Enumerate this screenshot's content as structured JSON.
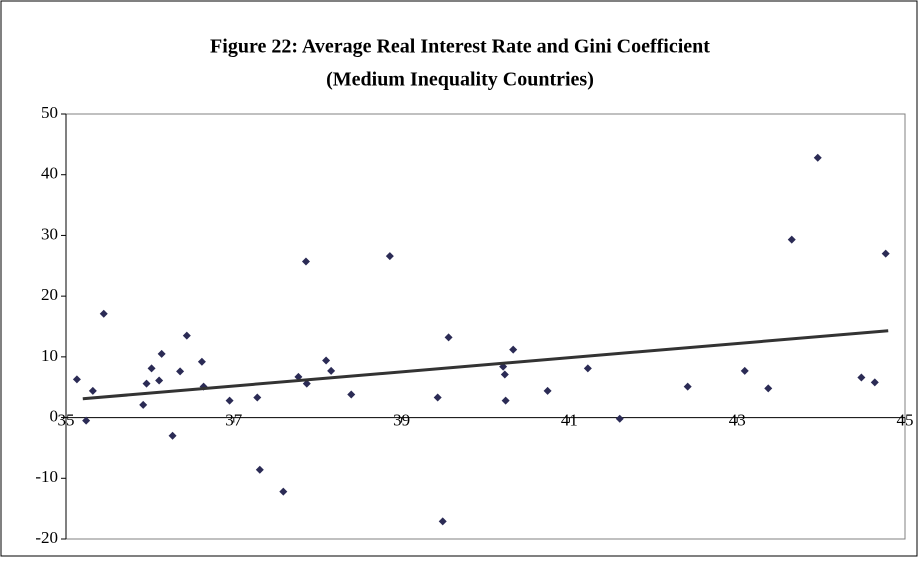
{
  "chart_data": {
    "type": "scatter",
    "title": "Figure 22: Average Real Interest Rate and Gini Coefficient",
    "subtitle": "(Medium Inequality Countries)",
    "color": "#2b2b55",
    "x": [
      35.13,
      35.24,
      35.32,
      35.45,
      35.92,
      35.96,
      36.02,
      36.11,
      36.14,
      36.27,
      36.36,
      36.44,
      36.62,
      36.64,
      36.95,
      37.28,
      37.31,
      37.59,
      37.77,
      37.86,
      37.87,
      38.1,
      38.16,
      38.4,
      38.86,
      39.43,
      39.49,
      39.56,
      40.21,
      40.23,
      40.24,
      40.33,
      40.74,
      41.22,
      41.6,
      42.41,
      43.09,
      43.37,
      43.65,
      43.96,
      44.48,
      44.64,
      44.77
    ],
    "values": [
      6.3,
      -0.5,
      4.4,
      17.1,
      2.1,
      5.6,
      8.1,
      6.1,
      10.5,
      -3.0,
      7.6,
      13.5,
      9.2,
      5.1,
      2.8,
      3.3,
      -8.6,
      -12.2,
      6.7,
      25.7,
      5.6,
      9.4,
      7.7,
      3.8,
      26.6,
      3.3,
      -17.1,
      13.2,
      8.4,
      7.1,
      2.8,
      11.2,
      4.4,
      8.1,
      -0.2,
      5.1,
      7.7,
      4.8,
      29.3,
      42.8,
      6.6,
      5.8,
      27.0
    ],
    "trendline": {
      "x": [
        35.2,
        44.8
      ],
      "values": [
        3.1,
        14.3
      ],
      "color": "#333333"
    },
    "xlim": [
      35,
      45
    ],
    "xticks": [
      35,
      37,
      39,
      41,
      43,
      45
    ],
    "ylim": [
      -20,
      50
    ],
    "yticks": [
      -20,
      -10,
      0,
      10,
      20,
      30,
      40,
      50
    ]
  }
}
